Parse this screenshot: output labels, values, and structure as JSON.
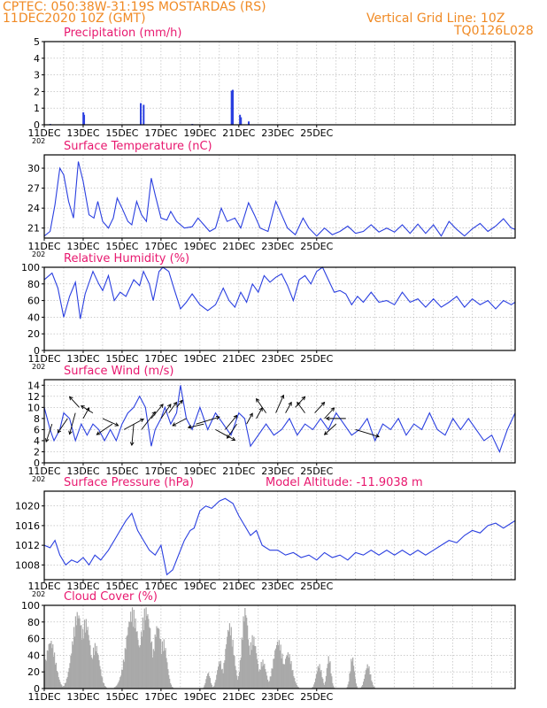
{
  "header": {
    "station": "CPTEC:   050:38W-31:19S   MOSTARDAS (RS)",
    "init": "11DEC2020 10Z (GMT)",
    "grid_note": "Vertical Grid Line: 10Z",
    "model_code": "TQ0126L028"
  },
  "x_ticks": [
    "11DEC",
    "13DEC",
    "15DEC",
    "17DEC",
    "19DEC",
    "21DEC",
    "23DEC",
    "25DEC"
  ],
  "x_cutoff_label": "202",
  "colors": {
    "line": "#2a3fe0",
    "bar": "#2a3fe0",
    "cloud": "#a9a9a9",
    "title": "#e8186f",
    "header": "#f08a24"
  },
  "chart_data": [
    {
      "type": "bar",
      "title": "Precipitation (mm/h)",
      "x_unit": "days since 11DEC 00Z",
      "ylim": [
        0,
        5
      ],
      "yticks": [
        0,
        1,
        2,
        3,
        4,
        5
      ],
      "bars": [
        {
          "x": 2.0,
          "y": 0.75
        },
        {
          "x": 2.04,
          "y": 0.6
        },
        {
          "x": 4.95,
          "y": 1.3
        },
        {
          "x": 5.1,
          "y": 1.2
        },
        {
          "x": 9.62,
          "y": 2.05
        },
        {
          "x": 9.68,
          "y": 2.1
        },
        {
          "x": 10.05,
          "y": 0.6
        },
        {
          "x": 10.1,
          "y": 0.45
        },
        {
          "x": 10.5,
          "y": 0.2
        },
        {
          "x": 0.3,
          "y": 0.05
        },
        {
          "x": 7.6,
          "y": 0.05
        }
      ]
    },
    {
      "type": "line",
      "title": "Surface Temperature (nC)",
      "ylim": [
        19.5,
        32
      ],
      "yticks": [
        21,
        24,
        27,
        30
      ],
      "points": [
        [
          0,
          19.8
        ],
        [
          0.3,
          20.5
        ],
        [
          0.55,
          24.5
        ],
        [
          0.8,
          30
        ],
        [
          1.0,
          29
        ],
        [
          1.25,
          25
        ],
        [
          1.5,
          22.5
        ],
        [
          1.75,
          31
        ],
        [
          2.0,
          28
        ],
        [
          2.3,
          23
        ],
        [
          2.55,
          22.5
        ],
        [
          2.75,
          25
        ],
        [
          3.0,
          22
        ],
        [
          3.3,
          21
        ],
        [
          3.55,
          22.5
        ],
        [
          3.75,
          25.5
        ],
        [
          4.0,
          24
        ],
        [
          4.3,
          22
        ],
        [
          4.5,
          21.5
        ],
        [
          4.75,
          25
        ],
        [
          5.0,
          23
        ],
        [
          5.25,
          22
        ],
        [
          5.5,
          28.5
        ],
        [
          5.7,
          26
        ],
        [
          6.0,
          22.5
        ],
        [
          6.3,
          22.2
        ],
        [
          6.5,
          23.5
        ],
        [
          6.8,
          22
        ],
        [
          7.2,
          21
        ],
        [
          7.6,
          21.2
        ],
        [
          7.9,
          22.5
        ],
        [
          8.2,
          21.5
        ],
        [
          8.5,
          20.5
        ],
        [
          8.8,
          21
        ],
        [
          9.1,
          24
        ],
        [
          9.4,
          22
        ],
        [
          9.8,
          22.5
        ],
        [
          10.1,
          21
        ],
        [
          10.5,
          24.8
        ],
        [
          10.8,
          23
        ],
        [
          11.1,
          21
        ],
        [
          11.5,
          20.5
        ],
        [
          11.9,
          25
        ],
        [
          12.2,
          23
        ],
        [
          12.5,
          21
        ],
        [
          12.9,
          20
        ],
        [
          13.3,
          22.5
        ],
        [
          13.6,
          21
        ],
        [
          14.0,
          19.8
        ],
        [
          14.4,
          21
        ],
        [
          14.8,
          20
        ],
        [
          15.2,
          20.5
        ],
        [
          15.6,
          21.3
        ],
        [
          16.0,
          20.2
        ],
        [
          16.4,
          20.5
        ],
        [
          16.8,
          21.5
        ],
        [
          17.2,
          20.4
        ],
        [
          17.6,
          21
        ],
        [
          18.0,
          20.4
        ],
        [
          18.4,
          21.5
        ],
        [
          18.8,
          20.2
        ],
        [
          19.2,
          21.6
        ],
        [
          19.6,
          20.2
        ],
        [
          20.0,
          21.5
        ],
        [
          20.4,
          19.8
        ],
        [
          20.8,
          22
        ],
        [
          21.2,
          20.8
        ],
        [
          21.6,
          19.8
        ],
        [
          22.0,
          20.9
        ],
        [
          22.4,
          21.7
        ],
        [
          22.8,
          20.5
        ],
        [
          23.2,
          21.3
        ],
        [
          23.6,
          22.4
        ],
        [
          24.0,
          21
        ],
        [
          24.2,
          20.8
        ]
      ]
    },
    {
      "type": "line",
      "title": "Relative Humidity (%)",
      "ylim": [
        0,
        100
      ],
      "yticks": [
        0,
        20,
        40,
        60,
        80,
        100
      ],
      "points": [
        [
          0,
          85
        ],
        [
          0.4,
          93
        ],
        [
          0.7,
          75
        ],
        [
          1.0,
          40
        ],
        [
          1.3,
          65
        ],
        [
          1.6,
          82
        ],
        [
          1.85,
          38
        ],
        [
          2.1,
          68
        ],
        [
          2.5,
          95
        ],
        [
          2.8,
          80
        ],
        [
          3.0,
          72
        ],
        [
          3.3,
          90
        ],
        [
          3.6,
          60
        ],
        [
          3.9,
          70
        ],
        [
          4.2,
          65
        ],
        [
          4.6,
          85
        ],
        [
          4.9,
          78
        ],
        [
          5.1,
          95
        ],
        [
          5.4,
          80
        ],
        [
          5.6,
          60
        ],
        [
          5.9,
          95
        ],
        [
          6.1,
          100
        ],
        [
          6.4,
          95
        ],
        [
          6.7,
          72
        ],
        [
          7.0,
          50
        ],
        [
          7.3,
          58
        ],
        [
          7.6,
          68
        ],
        [
          8.0,
          55
        ],
        [
          8.4,
          48
        ],
        [
          8.8,
          55
        ],
        [
          9.2,
          75
        ],
        [
          9.5,
          60
        ],
        [
          9.8,
          52
        ],
        [
          10.1,
          70
        ],
        [
          10.4,
          58
        ],
        [
          10.7,
          80
        ],
        [
          11.0,
          70
        ],
        [
          11.3,
          90
        ],
        [
          11.6,
          82
        ],
        [
          11.9,
          88
        ],
        [
          12.2,
          92
        ],
        [
          12.5,
          78
        ],
        [
          12.8,
          60
        ],
        [
          13.1,
          85
        ],
        [
          13.4,
          90
        ],
        [
          13.7,
          80
        ],
        [
          14.0,
          95
        ],
        [
          14.3,
          100
        ],
        [
          14.6,
          85
        ],
        [
          14.9,
          70
        ],
        [
          15.2,
          72
        ],
        [
          15.5,
          68
        ],
        [
          15.8,
          55
        ],
        [
          16.1,
          65
        ],
        [
          16.4,
          58
        ],
        [
          16.8,
          70
        ],
        [
          17.2,
          58
        ],
        [
          17.6,
          60
        ],
        [
          18.0,
          55
        ],
        [
          18.4,
          70
        ],
        [
          18.8,
          58
        ],
        [
          19.2,
          62
        ],
        [
          19.6,
          52
        ],
        [
          20.0,
          62
        ],
        [
          20.4,
          52
        ],
        [
          20.8,
          58
        ],
        [
          21.2,
          65
        ],
        [
          21.6,
          52
        ],
        [
          22.0,
          62
        ],
        [
          22.4,
          55
        ],
        [
          22.8,
          60
        ],
        [
          23.2,
          50
        ],
        [
          23.6,
          60
        ],
        [
          24.0,
          55
        ],
        [
          24.2,
          58
        ]
      ]
    },
    {
      "type": "line",
      "title": "Surface Wind (m/s)",
      "ylim": [
        0,
        15
      ],
      "yticks": [
        0,
        2,
        4,
        6,
        8,
        10,
        12,
        14
      ],
      "points": [
        [
          0,
          10
        ],
        [
          0.3,
          6
        ],
        [
          0.5,
          4
        ],
        [
          0.8,
          6
        ],
        [
          1.0,
          9
        ],
        [
          1.3,
          8
        ],
        [
          1.6,
          4
        ],
        [
          1.9,
          7
        ],
        [
          2.2,
          5
        ],
        [
          2.5,
          7
        ],
        [
          2.8,
          6
        ],
        [
          3.1,
          4
        ],
        [
          3.4,
          6
        ],
        [
          3.7,
          4
        ],
        [
          4.0,
          7
        ],
        [
          4.3,
          9
        ],
        [
          4.6,
          10
        ],
        [
          4.9,
          12
        ],
        [
          5.2,
          10
        ],
        [
          5.5,
          3
        ],
        [
          5.7,
          6
        ],
        [
          6.0,
          8
        ],
        [
          6.2,
          10
        ],
        [
          6.5,
          7
        ],
        [
          6.8,
          9
        ],
        [
          7.0,
          14
        ],
        [
          7.3,
          8
        ],
        [
          7.6,
          6
        ],
        [
          8.0,
          10
        ],
        [
          8.4,
          6
        ],
        [
          8.8,
          9
        ],
        [
          9.2,
          7
        ],
        [
          9.6,
          5
        ],
        [
          10.0,
          9
        ],
        [
          10.3,
          8
        ],
        [
          10.6,
          3
        ],
        [
          11.0,
          5
        ],
        [
          11.4,
          7
        ],
        [
          11.8,
          5
        ],
        [
          12.2,
          6
        ],
        [
          12.6,
          8
        ],
        [
          13.0,
          5
        ],
        [
          13.4,
          7
        ],
        [
          13.8,
          6
        ],
        [
          14.2,
          8
        ],
        [
          14.6,
          6
        ],
        [
          15.0,
          9
        ],
        [
          15.4,
          7
        ],
        [
          15.8,
          5
        ],
        [
          16.2,
          6
        ],
        [
          16.6,
          8
        ],
        [
          17.0,
          4
        ],
        [
          17.4,
          7
        ],
        [
          17.8,
          6
        ],
        [
          18.2,
          8
        ],
        [
          18.6,
          5
        ],
        [
          19.0,
          7
        ],
        [
          19.4,
          6
        ],
        [
          19.8,
          9
        ],
        [
          20.2,
          6
        ],
        [
          20.6,
          5
        ],
        [
          21.0,
          8
        ],
        [
          21.4,
          6
        ],
        [
          21.8,
          8
        ],
        [
          22.2,
          6
        ],
        [
          22.6,
          4
        ],
        [
          23.0,
          5
        ],
        [
          23.4,
          2
        ],
        [
          23.8,
          6
        ],
        [
          24.2,
          9
        ]
      ],
      "arrows": [
        [
          0.4,
          7,
          -0.3,
          -5
        ],
        [
          1.2,
          8,
          -0.5,
          -4
        ],
        [
          1.6,
          9,
          -0.3,
          -6
        ],
        [
          1.8,
          10,
          -0.5,
          3
        ],
        [
          2.0,
          8,
          0.3,
          3
        ],
        [
          2.5,
          9,
          -0.6,
          2
        ],
        [
          3.0,
          8,
          0.8,
          -2
        ],
        [
          3.5,
          7,
          -0.8,
          -3
        ],
        [
          4.1,
          6,
          1.0,
          3
        ],
        [
          4.6,
          7,
          -0.1,
          -6
        ],
        [
          5.0,
          6,
          0.7,
          5
        ],
        [
          5.5,
          8,
          0.6,
          4
        ],
        [
          6.0,
          8,
          0.5,
          4
        ],
        [
          6.4,
          9,
          0.4,
          3
        ],
        [
          6.8,
          10,
          0.3,
          2
        ],
        [
          7.3,
          8,
          -0.7,
          -2
        ],
        [
          7.8,
          7,
          1.2,
          2
        ],
        [
          8.2,
          7,
          -0.8,
          -1
        ],
        [
          8.8,
          6,
          1.0,
          -3
        ],
        [
          9.3,
          6,
          0.6,
          4
        ],
        [
          9.9,
          7,
          -0.5,
          -4
        ],
        [
          10.4,
          7,
          0.3,
          3
        ],
        [
          10.9,
          8,
          0.3,
          3
        ],
        [
          11.4,
          9,
          -0.5,
          4
        ],
        [
          11.9,
          9,
          0.4,
          5
        ],
        [
          12.4,
          9,
          0.3,
          3
        ],
        [
          12.9,
          10,
          0.5,
          3
        ],
        [
          13.4,
          9,
          -0.4,
          3
        ],
        [
          13.9,
          9,
          0.5,
          3
        ],
        [
          14.4,
          8,
          0.5,
          3
        ],
        [
          15.0,
          7,
          -0.6,
          -3
        ],
        [
          15.5,
          8,
          -1.0,
          0
        ],
        [
          16.0,
          6,
          1.2,
          -2
        ]
      ]
    },
    {
      "type": "line",
      "title": "Surface Pressure (hPa)",
      "subtitle": "Model Altitude: -11.9038 m",
      "ylim": [
        1005,
        1023
      ],
      "yticks": [
        1008,
        1012,
        1016,
        1020
      ],
      "points": [
        [
          0,
          1012
        ],
        [
          0.3,
          1011.5
        ],
        [
          0.55,
          1013
        ],
        [
          0.8,
          1010
        ],
        [
          1.1,
          1008
        ],
        [
          1.4,
          1009
        ],
        [
          1.7,
          1008.5
        ],
        [
          2.0,
          1009.5
        ],
        [
          2.3,
          1008
        ],
        [
          2.6,
          1010
        ],
        [
          2.9,
          1009
        ],
        [
          3.3,
          1011
        ],
        [
          3.6,
          1013
        ],
        [
          3.9,
          1015
        ],
        [
          4.2,
          1017
        ],
        [
          4.5,
          1018.5
        ],
        [
          4.8,
          1015
        ],
        [
          5.1,
          1013
        ],
        [
          5.4,
          1011
        ],
        [
          5.7,
          1010
        ],
        [
          6.0,
          1012
        ],
        [
          6.3,
          1006
        ],
        [
          6.6,
          1007
        ],
        [
          6.9,
          1010
        ],
        [
          7.2,
          1013
        ],
        [
          7.5,
          1015
        ],
        [
          7.7,
          1015.5
        ],
        [
          8.0,
          1019
        ],
        [
          8.3,
          1020
        ],
        [
          8.6,
          1019.5
        ],
        [
          9.0,
          1021
        ],
        [
          9.3,
          1021.5
        ],
        [
          9.7,
          1020.5
        ],
        [
          10.0,
          1018
        ],
        [
          10.3,
          1016
        ],
        [
          10.6,
          1014
        ],
        [
          10.9,
          1015
        ],
        [
          11.2,
          1012
        ],
        [
          11.6,
          1011
        ],
        [
          12.0,
          1011
        ],
        [
          12.4,
          1010
        ],
        [
          12.8,
          1010.5
        ],
        [
          13.2,
          1009.5
        ],
        [
          13.6,
          1010
        ],
        [
          14.0,
          1009
        ],
        [
          14.4,
          1010.5
        ],
        [
          14.8,
          1009.5
        ],
        [
          15.2,
          1010
        ],
        [
          15.6,
          1009
        ],
        [
          16.0,
          1010.5
        ],
        [
          16.4,
          1010
        ],
        [
          16.8,
          1011
        ],
        [
          17.2,
          1010
        ],
        [
          17.6,
          1011
        ],
        [
          18.0,
          1010
        ],
        [
          18.4,
          1011
        ],
        [
          18.8,
          1010
        ],
        [
          19.2,
          1011
        ],
        [
          19.6,
          1010
        ],
        [
          20.0,
          1011
        ],
        [
          20.4,
          1012
        ],
        [
          20.8,
          1013
        ],
        [
          21.2,
          1012.5
        ],
        [
          21.6,
          1014
        ],
        [
          22.0,
          1015
        ],
        [
          22.4,
          1014.5
        ],
        [
          22.8,
          1016
        ],
        [
          23.2,
          1016.5
        ],
        [
          23.6,
          1015.5
        ],
        [
          24.0,
          1016.5
        ],
        [
          24.2,
          1017
        ]
      ]
    },
    {
      "type": "bar",
      "title": "Cloud Cover (%)",
      "ylim": [
        0,
        100
      ],
      "yticks": [
        0,
        20,
        40,
        60,
        80,
        100
      ]
    }
  ]
}
